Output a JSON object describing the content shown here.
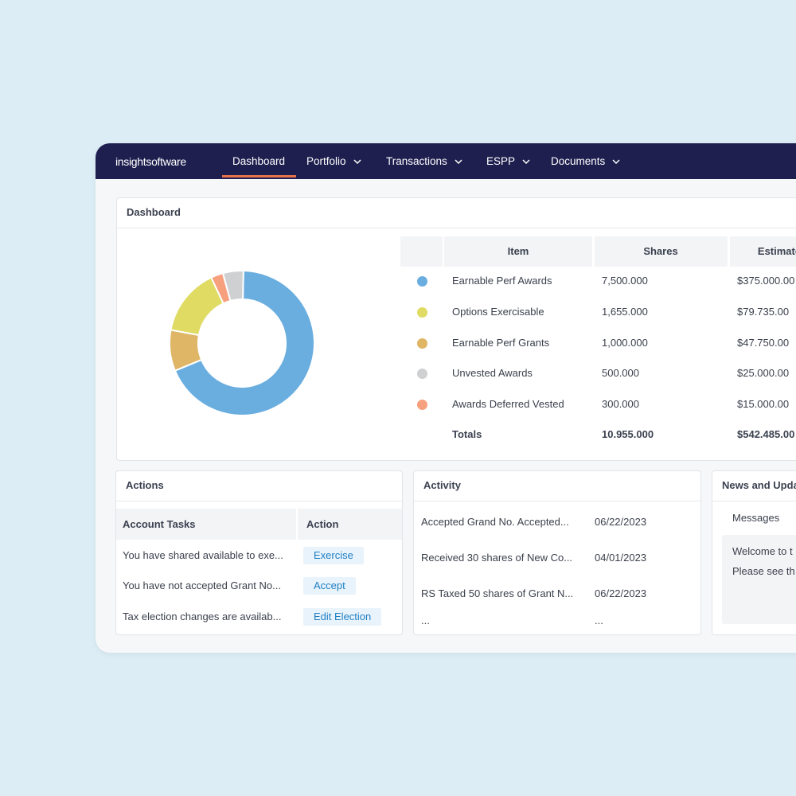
{
  "nav": {
    "logo": "insightsoftware",
    "items": [
      "Dashboard",
      "Portfolio",
      "Transactions",
      "ESPP",
      "Documents"
    ],
    "active": 0
  },
  "dashboard": {
    "title": "Dashboard",
    "table": {
      "headers": [
        "Item",
        "Shares",
        "Estimate"
      ],
      "rows": [
        {
          "item": "Earnable Perf Awards",
          "shares": "7,500.000",
          "value": "$375.000.00",
          "color": "#6aaee0"
        },
        {
          "item": "Options Exercisable",
          "shares": "1,655.000",
          "value": "$79.735.00",
          "color": "#dfdb63"
        },
        {
          "item": "Earnable Perf Grants",
          "shares": "1,000.000",
          "value": "$47.750.00",
          "color": "#dfb566"
        },
        {
          "item": "Unvested Awards",
          "shares": "500.000",
          "value": "$25.000.00",
          "color": "#cfd0d2"
        },
        {
          "item": "Awards  Deferred Vested",
          "shares": "300.000",
          "value": "$15.000.00",
          "color": "#f7a07e"
        }
      ],
      "totals": {
        "label": "Totals",
        "shares": "10.955.000",
        "value": "$542.485.00"
      }
    }
  },
  "chart_data": {
    "type": "pie",
    "values": [
      7500,
      1000,
      1655,
      300,
      500
    ],
    "colors": [
      "#6aaee0",
      "#dfb566",
      "#dfdb63",
      "#f7a07e",
      "#cfd0d2"
    ]
  },
  "actions": {
    "title": "Actions",
    "headers": [
      "Account Tasks",
      "Action"
    ],
    "rows": [
      [
        "You have shared available to exe...",
        "Exercise"
      ],
      [
        "You have not accepted Grant No...",
        "Accept"
      ],
      [
        "Tax election changes are availab...",
        "Edit Election"
      ]
    ]
  },
  "activity": {
    "title": "Activity",
    "rows": [
      [
        "Accepted Grand No. Accepted...",
        "06/22/2023"
      ],
      [
        "Received 30 shares of New Co...",
        "04/01/2023"
      ],
      [
        "RS Taxed 50 shares of Grant N...",
        "06/22/2023"
      ],
      [
        "...",
        "..."
      ]
    ]
  },
  "news": {
    "title": "News and Upda",
    "tab": "Messages",
    "lines": [
      "Welcome to t",
      "Please see th"
    ]
  }
}
